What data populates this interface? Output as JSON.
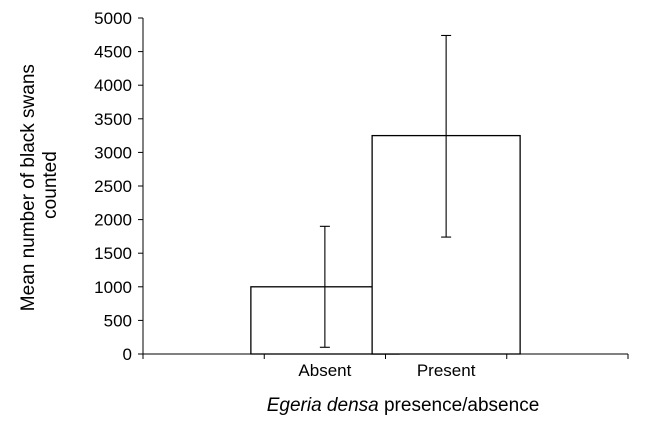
{
  "chart_data": {
    "type": "bar",
    "categories": [
      "Absent",
      "Present"
    ],
    "values": [
      1000,
      3250
    ],
    "error_bars": {
      "lower": [
        100,
        1740
      ],
      "upper": [
        1900,
        4740
      ]
    },
    "title": "",
    "ylabel_lines": [
      "Mean number of black swans",
      "counted"
    ],
    "xlabel": {
      "italic_part": "Egeria densa",
      "plain_part": " presence/absence"
    },
    "ylim": [
      0,
      5000
    ],
    "yticks": [
      0,
      500,
      1000,
      1500,
      2000,
      2500,
      3000,
      3500,
      4000,
      4500,
      5000
    ],
    "grid": false,
    "legend": "none"
  }
}
